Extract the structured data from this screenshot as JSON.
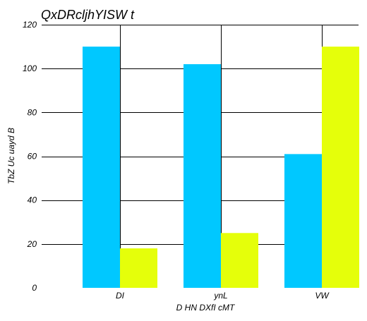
{
  "chart_data": {
    "type": "bar",
    "title": "QxDRcljhYISW t",
    "xlabel": "D HN DXfI  cMT",
    "ylabel": "TbZ Uc uayd B",
    "categories": [
      "DI",
      "ynL",
      "VW"
    ],
    "series": [
      {
        "values": [
          110,
          102,
          61
        ],
        "color": "#00c8ff"
      },
      {
        "values": [
          18,
          25,
          110
        ],
        "color": "#e5ff0a"
      }
    ],
    "ylim": [
      0,
      120
    ],
    "yticks": [
      0,
      20,
      40,
      60,
      80,
      100,
      120
    ],
    "grid": true
  }
}
